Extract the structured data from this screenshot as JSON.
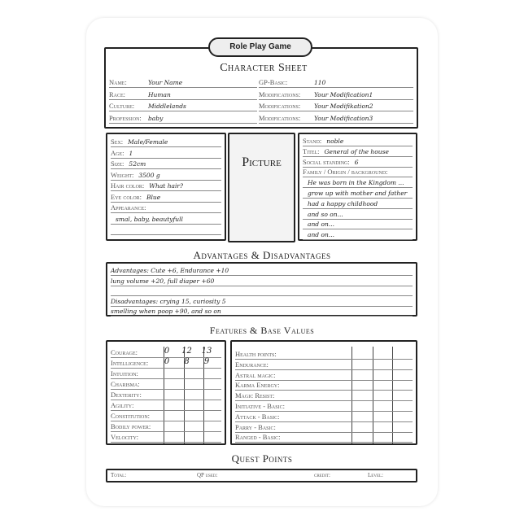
{
  "title": "Role Play Game",
  "heading": "Character Sheet",
  "basics": {
    "left": [
      {
        "label": "Name:",
        "value": "Your Name"
      },
      {
        "label": "Race:",
        "value": "Human"
      },
      {
        "label": "Culture:",
        "value": "Middlelands"
      },
      {
        "label": "Profession:",
        "value": "baby"
      }
    ],
    "right": [
      {
        "label": "GP-Basic:",
        "value": "110"
      },
      {
        "label": "Modifications:",
        "value": "Your Modification1"
      },
      {
        "label": "Modifications:",
        "value": "Your Modifikation2"
      },
      {
        "label": "Modifications:",
        "value": "Your Modification3"
      }
    ]
  },
  "appearance": [
    {
      "label": "Sex:",
      "value": "Male/Female"
    },
    {
      "label": "Age:",
      "value": "1"
    },
    {
      "label": "Size:",
      "value": "52cm"
    },
    {
      "label": "Weight:",
      "value": "3500 g"
    },
    {
      "label": "Hair color:",
      "value": "What hair?"
    },
    {
      "label": "Eye color:",
      "value": "Blue"
    },
    {
      "label": "Appearance:",
      "value": ""
    },
    {
      "label": "",
      "value": "smal, baby, beautyfull"
    },
    {
      "label": "",
      "value": ""
    }
  ],
  "picture_label": "Picture",
  "status": [
    {
      "label": "Stand:",
      "value": "noble"
    },
    {
      "label": "Titel:",
      "value": "General of the house"
    },
    {
      "label": "Social standing:",
      "value": "6"
    },
    {
      "label": "Family / Origin / background:",
      "value": ""
    },
    {
      "label": "",
      "value": "He was born in the Kingdom ..."
    },
    {
      "label": "",
      "value": "grow up with mother and father"
    },
    {
      "label": "",
      "value": "had a happy childhood"
    },
    {
      "label": "",
      "value": "and so on..."
    },
    {
      "label": "",
      "value": "and on..."
    },
    {
      "label": "",
      "value": "and on..."
    }
  ],
  "advantages_heading": "Advantages & Disadvantages",
  "advantages": [
    "Advantages: Cute +6, Endurance +10",
    "lung volume +20, full diaper +60",
    "",
    "Disadvantages: crying 15, curiosity 5",
    "smelling when poop +90, and so on"
  ],
  "features_heading": "Features & Base Values",
  "attributes": [
    {
      "label": "Courage:",
      "v": [
        "0",
        "12",
        "13"
      ]
    },
    {
      "label": "Intelligence:",
      "v": [
        "0",
        "8",
        "9"
      ]
    },
    {
      "label": "Intuition:"
    },
    {
      "label": "Charisma:"
    },
    {
      "label": "Dexterity:"
    },
    {
      "label": "Agility:"
    },
    {
      "label": "Constitution:"
    },
    {
      "label": "Bodily power:"
    },
    {
      "label": "Velocity:"
    }
  ],
  "base_values": [
    "Health points:",
    "Endurance:",
    "Astral magic:",
    "Karma Energy:",
    "Magic Resist:",
    "Initiative - Basic:",
    "Attack - Basic:",
    "Parry - Basic:",
    "Ranged - Basic:"
  ],
  "quest_heading": "Quest Points",
  "quest": [
    "Total:",
    "QP used:",
    "credit:",
    "Level:"
  ]
}
